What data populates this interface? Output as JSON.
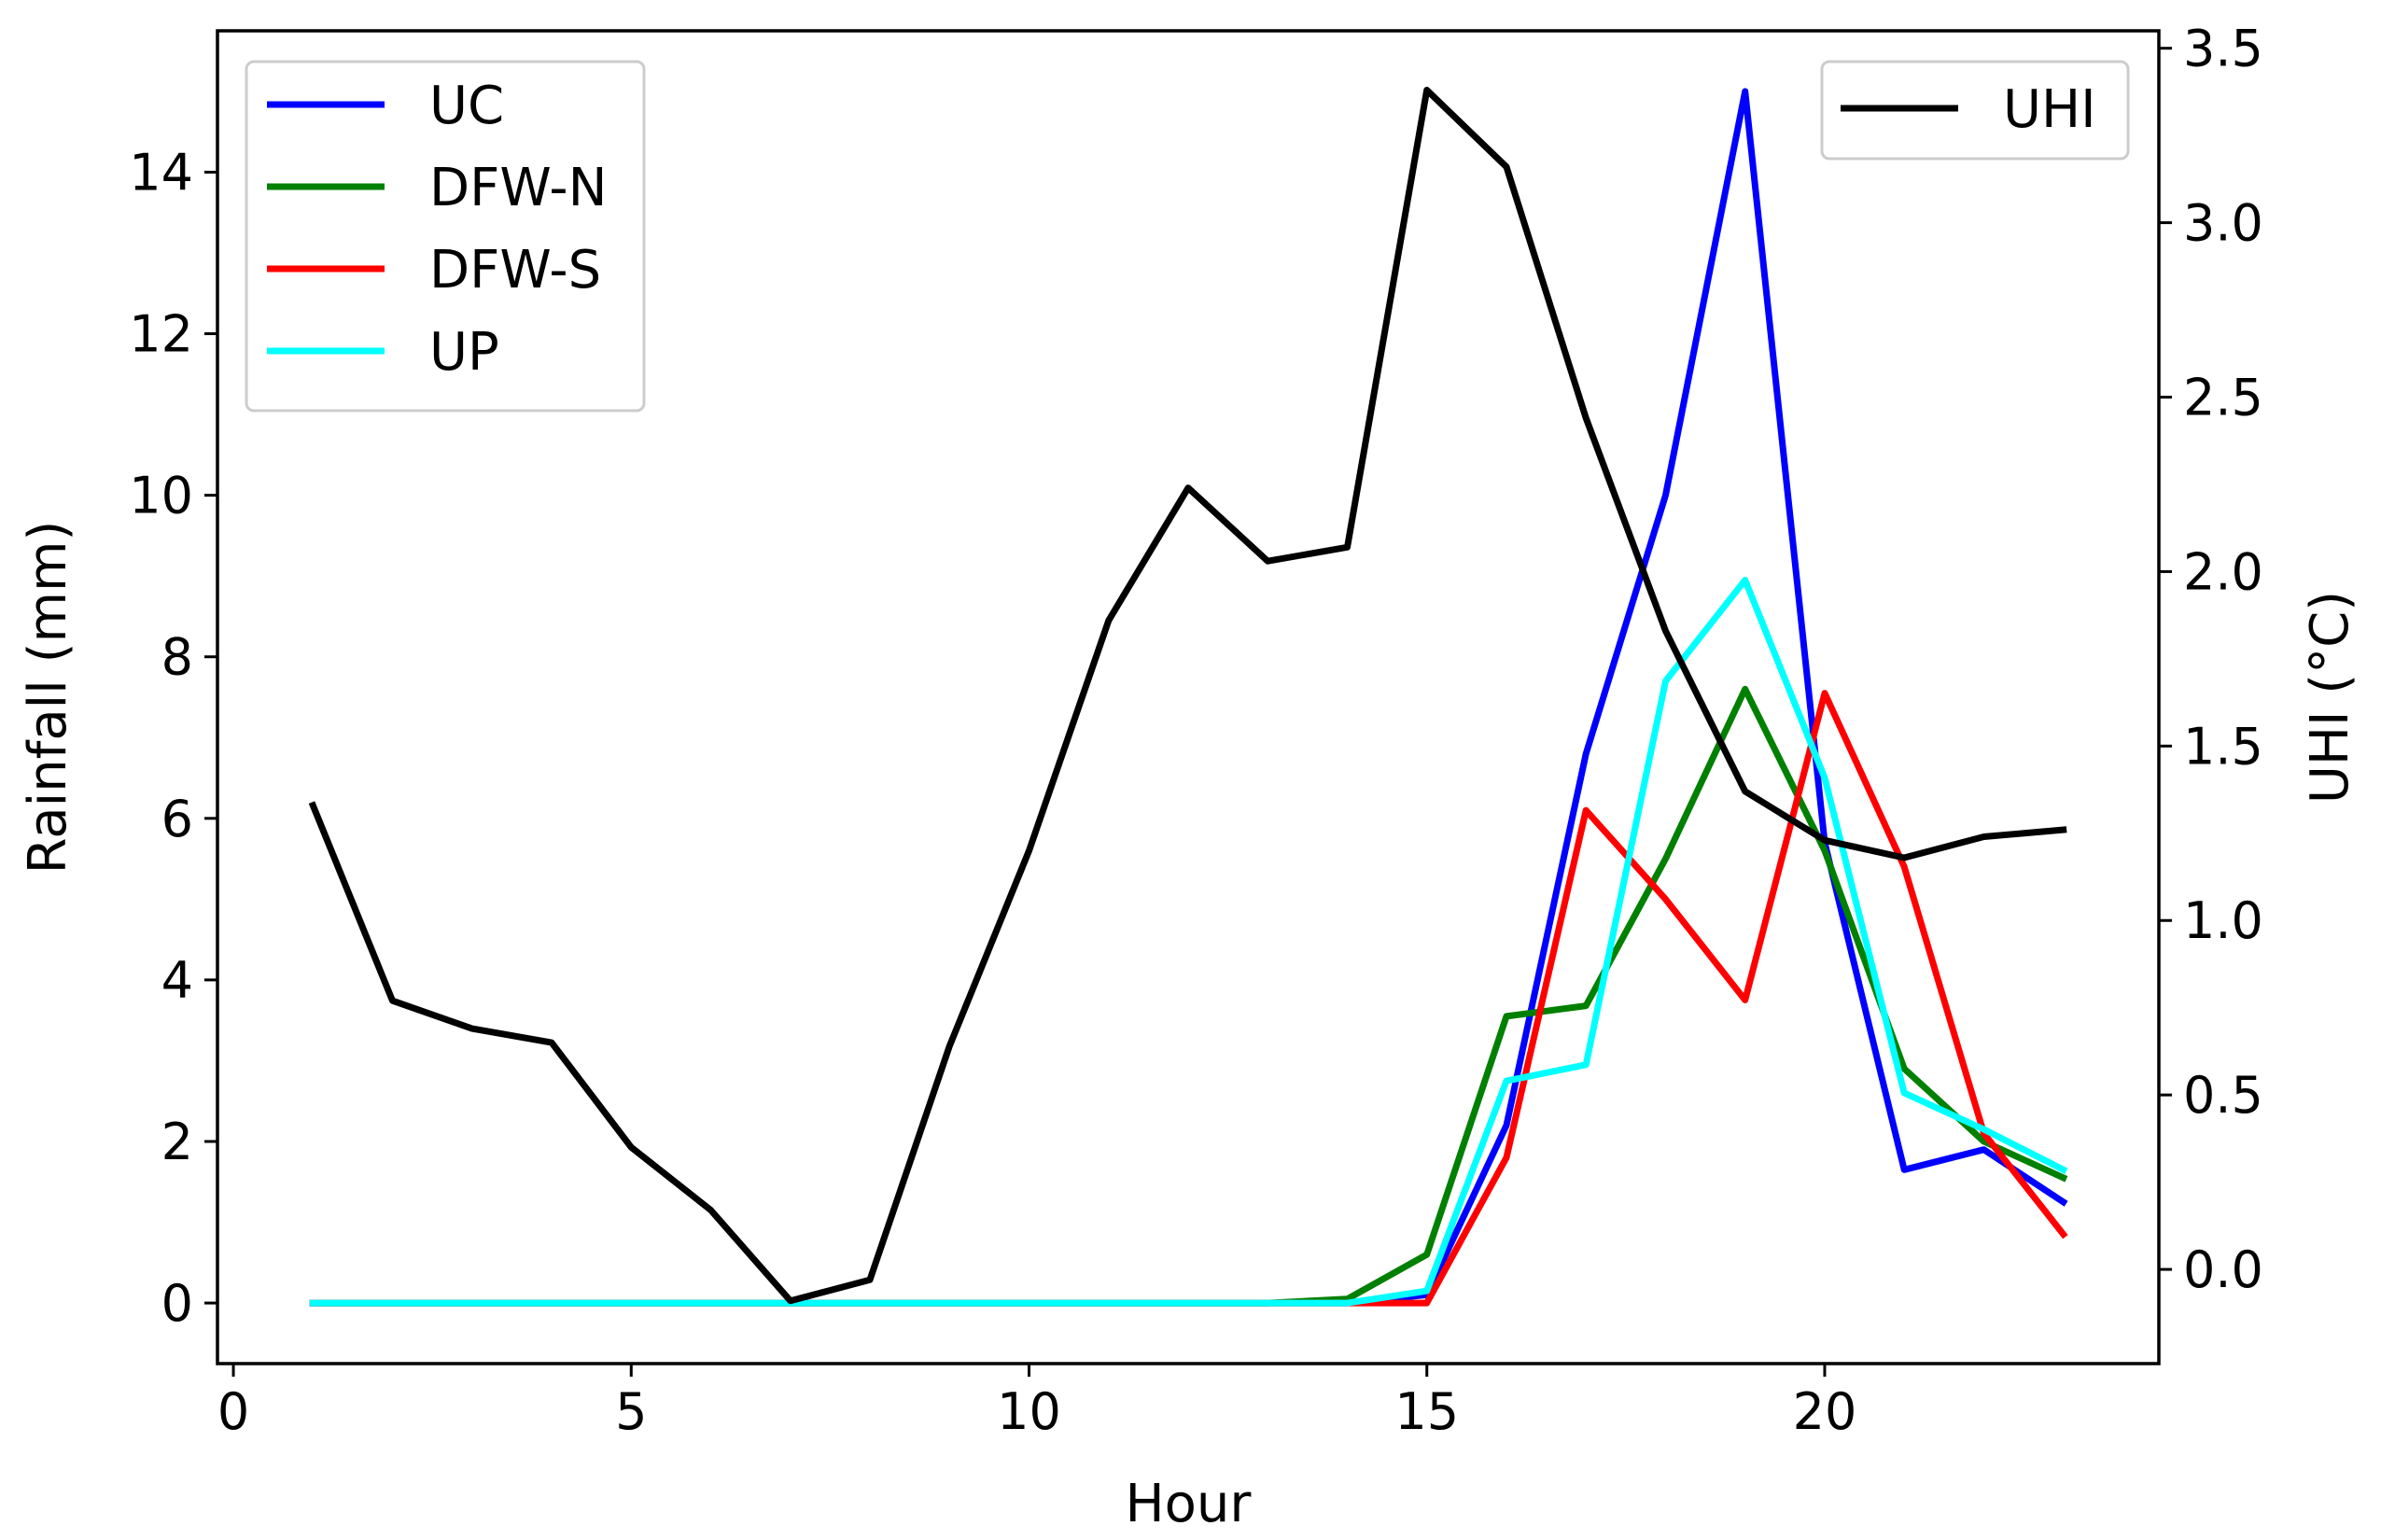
{
  "chart_data": {
    "type": "line",
    "xlabel": "Hour",
    "ylabel_left": "Rainfall (mm)",
    "ylabel_right": "UHI (°C)",
    "xlim": [
      -0.2,
      24.2
    ],
    "ylim_left": [
      -0.75,
      15.75
    ],
    "ylim_right": [
      -0.27,
      3.55
    ],
    "xticks": [
      0,
      5,
      10,
      15,
      20
    ],
    "xtick_labels": [
      "0",
      "5",
      "10",
      "15",
      "20"
    ],
    "yticks_left": [
      0,
      2,
      4,
      6,
      8,
      10,
      12,
      14
    ],
    "ytick_labels_left": [
      "0",
      "2",
      "4",
      "6",
      "8",
      "10",
      "12",
      "14"
    ],
    "yticks_right": [
      0.0,
      0.5,
      1.0,
      1.5,
      2.0,
      2.5,
      3.0,
      3.5
    ],
    "ytick_labels_right": [
      "0.0",
      "0.5",
      "1.0",
      "1.5",
      "2.0",
      "2.5",
      "3.0",
      "3.5"
    ],
    "x": [
      1,
      2,
      3,
      4,
      5,
      6,
      7,
      8,
      9,
      10,
      11,
      12,
      13,
      14,
      15,
      16,
      17,
      18,
      19,
      20,
      21,
      22,
      23
    ],
    "series_left": [
      {
        "name": "UC",
        "color": "#0000ff",
        "values": [
          0,
          0,
          0,
          0,
          0,
          0,
          0,
          0,
          0,
          0,
          0,
          0,
          0,
          0,
          0.1,
          2.2,
          6.8,
          10.0,
          15.0,
          5.7,
          1.65,
          1.9,
          1.25
        ]
      },
      {
        "name": "DFW-N",
        "color": "#008000",
        "values": [
          0,
          0,
          0,
          0,
          0,
          0,
          0,
          0,
          0,
          0,
          0,
          0,
          0,
          0.05,
          0.6,
          3.55,
          3.68,
          5.5,
          7.6,
          5.6,
          2.9,
          2.0,
          1.55
        ]
      },
      {
        "name": "DFW-S",
        "color": "#ff0000",
        "values": [
          0,
          0,
          0,
          0,
          0,
          0,
          0,
          0,
          0,
          0,
          0,
          0,
          0,
          0,
          0,
          1.8,
          6.1,
          5.0,
          3.75,
          7.55,
          5.4,
          2.1,
          0.85
        ]
      },
      {
        "name": "UP",
        "color": "#00ffff",
        "values": [
          0,
          0,
          0,
          0,
          0,
          0,
          0,
          0,
          0,
          0,
          0,
          0,
          0,
          0,
          0.15,
          2.75,
          2.95,
          7.7,
          8.95,
          6.5,
          2.6,
          2.15,
          1.65
        ]
      }
    ],
    "series_right": [
      {
        "name": "UHI",
        "color": "#000000",
        "values": [
          1.33,
          0.77,
          0.69,
          0.65,
          0.35,
          0.17,
          -0.09,
          -0.03,
          0.64,
          1.2,
          1.86,
          2.24,
          2.03,
          2.07,
          3.38,
          3.16,
          2.44,
          1.83,
          1.37,
          1.23,
          1.18,
          1.24,
          1.26
        ]
      }
    ],
    "legend_left": {
      "position": "upper-left",
      "entries": [
        "UC",
        "DFW-N",
        "DFW-S",
        "UP"
      ]
    },
    "legend_right": {
      "position": "upper-right",
      "entries": [
        "UHI"
      ]
    },
    "grid": false
  }
}
